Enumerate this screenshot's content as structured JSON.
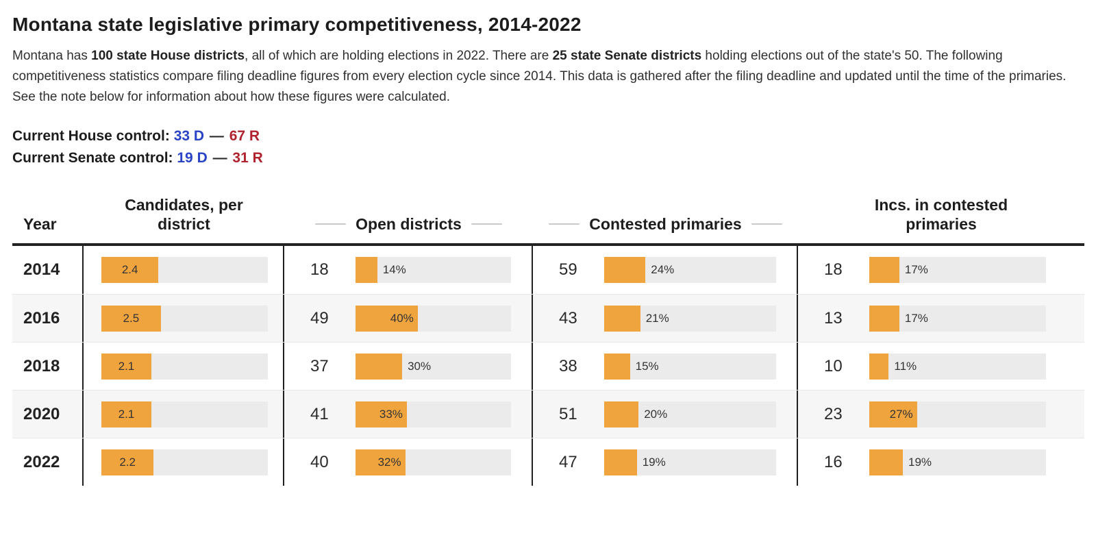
{
  "header": {
    "title": "Montana state legislative primary competitiveness, 2014-2022"
  },
  "intro": {
    "part1": "Montana has ",
    "bold1": "100 state House districts",
    "part2": ", all of which are holding elections in 2022. There are ",
    "bold2": "25 state Senate districts",
    "part3": " holding elections out of the state's 50. The following competitiveness statistics compare filing deadline figures from every election cycle since 2014. This data is gathered after the filing deadline and updated until the time of the primaries. See the note below for information about how these figures were calculated."
  },
  "control": {
    "separator": "—",
    "house": {
      "label": "Current House control:",
      "dem": "33 D",
      "rep": "67 R"
    },
    "senate": {
      "label": "Current Senate control:",
      "dem": "19 D",
      "rep": "31 R"
    }
  },
  "colors": {
    "bar_orange": "#f0a43e",
    "bar_track": "#ebebeb",
    "dem_blue": "#2843c6",
    "rep_red": "#b0232e",
    "shaded_row": "#f6f6f6"
  },
  "table": {
    "headers": {
      "year": "Year",
      "candidates": "Candidates, per district",
      "open": "Open districts",
      "contested": "Contested primaries",
      "incs": "Incs. in contested primaries"
    },
    "rows": [
      {
        "year": "2014",
        "candidates": {
          "value": "2.4",
          "bar_width": "34.3%"
        },
        "open": {
          "count": "18",
          "pct": "14%",
          "bar_width": "14%"
        },
        "contested": {
          "count": "59",
          "pct": "24%",
          "bar_width": "24%"
        },
        "incs": {
          "count": "18",
          "pct": "17%",
          "bar_width": "17%"
        }
      },
      {
        "year": "2016",
        "candidates": {
          "value": "2.5",
          "bar_width": "35.7%"
        },
        "open": {
          "count": "49",
          "pct": "40%",
          "bar_width": "40%"
        },
        "contested": {
          "count": "43",
          "pct": "21%",
          "bar_width": "21%"
        },
        "incs": {
          "count": "13",
          "pct": "17%",
          "bar_width": "17%"
        }
      },
      {
        "year": "2018",
        "candidates": {
          "value": "2.1",
          "bar_width": "30%"
        },
        "open": {
          "count": "37",
          "pct": "30%",
          "bar_width": "30%"
        },
        "contested": {
          "count": "38",
          "pct": "15%",
          "bar_width": "15%"
        },
        "incs": {
          "count": "10",
          "pct": "11%",
          "bar_width": "11%"
        }
      },
      {
        "year": "2020",
        "candidates": {
          "value": "2.1",
          "bar_width": "30%"
        },
        "open": {
          "count": "41",
          "pct": "33%",
          "bar_width": "33%"
        },
        "contested": {
          "count": "51",
          "pct": "20%",
          "bar_width": "20%"
        },
        "incs": {
          "count": "23",
          "pct": "27%",
          "bar_width": "27%"
        }
      },
      {
        "year": "2022",
        "candidates": {
          "value": "2.2",
          "bar_width": "31.4%"
        },
        "open": {
          "count": "40",
          "pct": "32%",
          "bar_width": "32%"
        },
        "contested": {
          "count": "47",
          "pct": "19%",
          "bar_width": "19%"
        },
        "incs": {
          "count": "16",
          "pct": "19%",
          "bar_width": "19%"
        }
      }
    ]
  },
  "chart_data": {
    "type": "table",
    "title": "Montana state legislative primary competitiveness, 2014-2022",
    "columns": [
      "Year",
      "Candidates per district",
      "Open districts (count)",
      "Open districts (%)",
      "Contested primaries (count)",
      "Contested primaries (%)",
      "Incs. in contested primaries (count)",
      "Incs. in contested primaries (%)"
    ],
    "rows": [
      [
        2014,
        2.4,
        18,
        14,
        59,
        24,
        18,
        17
      ],
      [
        2016,
        2.5,
        49,
        40,
        43,
        21,
        13,
        17
      ],
      [
        2018,
        2.1,
        37,
        30,
        38,
        15,
        10,
        11
      ],
      [
        2020,
        2.1,
        41,
        33,
        51,
        20,
        23,
        27
      ],
      [
        2022,
        2.2,
        40,
        32,
        47,
        19,
        16,
        19
      ]
    ],
    "bar_color": "#f0a43e",
    "candidates_bar_axis_max": 7,
    "percent_bar_axis_max": 100,
    "current_house_control": {
      "D": 33,
      "R": 67
    },
    "current_senate_control": {
      "D": 19,
      "R": 31
    }
  }
}
